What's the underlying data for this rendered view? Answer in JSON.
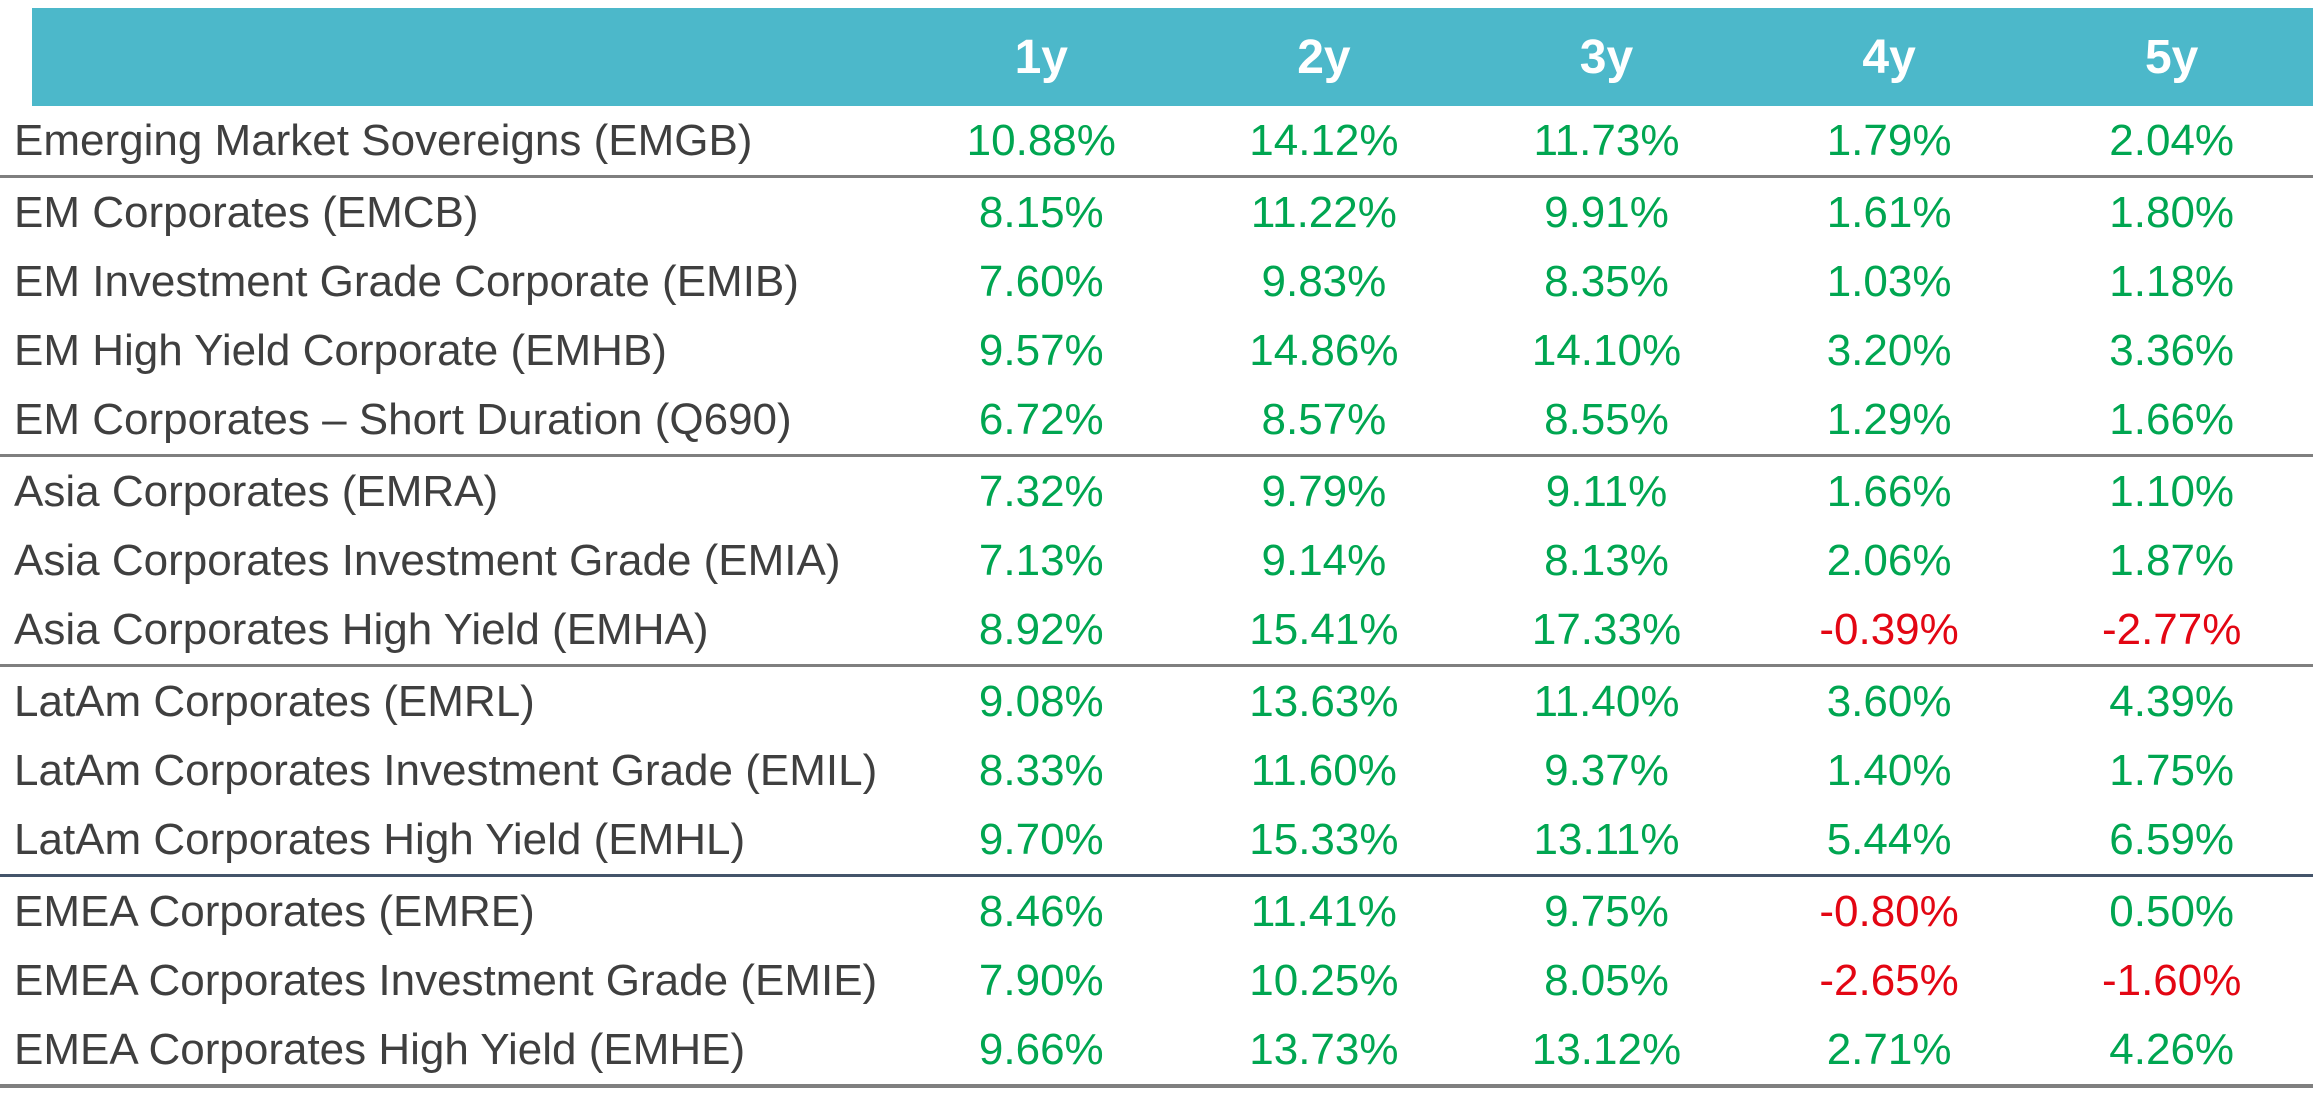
{
  "chart_data": {
    "type": "table",
    "title": "",
    "columns": [
      "1y",
      "2y",
      "3y",
      "4y",
      "5y"
    ],
    "value_format": "percent_2dp",
    "groups": [
      {
        "rows": [
          {
            "label": "Emerging Market Sovereigns (EMGB)",
            "values": [
              10.88,
              14.12,
              11.73,
              1.79,
              2.04
            ]
          }
        ]
      },
      {
        "rows": [
          {
            "label": "EM Corporates (EMCB)",
            "values": [
              8.15,
              11.22,
              9.91,
              1.61,
              1.8
            ]
          },
          {
            "label": "EM Investment Grade Corporate (EMIB)",
            "values": [
              7.6,
              9.83,
              8.35,
              1.03,
              1.18
            ]
          },
          {
            "label": "EM High Yield Corporate (EMHB)",
            "values": [
              9.57,
              14.86,
              14.1,
              3.2,
              3.36
            ]
          },
          {
            "label": "EM Corporates – Short Duration (Q690)",
            "values": [
              6.72,
              8.57,
              8.55,
              1.29,
              1.66
            ]
          }
        ]
      },
      {
        "rows": [
          {
            "label": "Asia Corporates (EMRA)",
            "values": [
              7.32,
              9.79,
              9.11,
              1.66,
              1.1
            ]
          },
          {
            "label": "Asia Corporates Investment Grade (EMIA)",
            "values": [
              7.13,
              9.14,
              8.13,
              2.06,
              1.87
            ]
          },
          {
            "label": "Asia Corporates High Yield (EMHA)",
            "values": [
              8.92,
              15.41,
              17.33,
              -0.39,
              -2.77
            ]
          }
        ]
      },
      {
        "rows": [
          {
            "label": "LatAm Corporates (EMRL)",
            "values": [
              9.08,
              13.63,
              11.4,
              3.6,
              4.39
            ]
          },
          {
            "label": "LatAm Corporates Investment Grade (EMIL)",
            "values": [
              8.33,
              11.6,
              9.37,
              1.4,
              1.75
            ]
          },
          {
            "label": "LatAm Corporates High Yield (EMHL)",
            "values": [
              9.7,
              15.33,
              13.11,
              5.44,
              6.59
            ]
          }
        ]
      },
      {
        "divider_color": "accent",
        "rows": [
          {
            "label": "EMEA Corporates (EMRE)",
            "values": [
              8.46,
              11.41,
              9.75,
              -0.8,
              0.5
            ]
          },
          {
            "label": "EMEA Corporates Investment Grade (EMIE)",
            "values": [
              7.9,
              10.25,
              8.05,
              -2.65,
              -1.6
            ]
          },
          {
            "label": "EMEA Corporates High Yield (EMHE)",
            "values": [
              9.66,
              13.73,
              13.12,
              2.71,
              4.26
            ]
          }
        ]
      }
    ],
    "colors": {
      "header_bg": "#4CB8CA",
      "header_text": "#FFFFFF",
      "positive": "#00A651",
      "negative": "#E30613",
      "label_text": "#3F3F3F",
      "divider": "#7F7F7F",
      "divider_accent": "#44546A"
    }
  }
}
